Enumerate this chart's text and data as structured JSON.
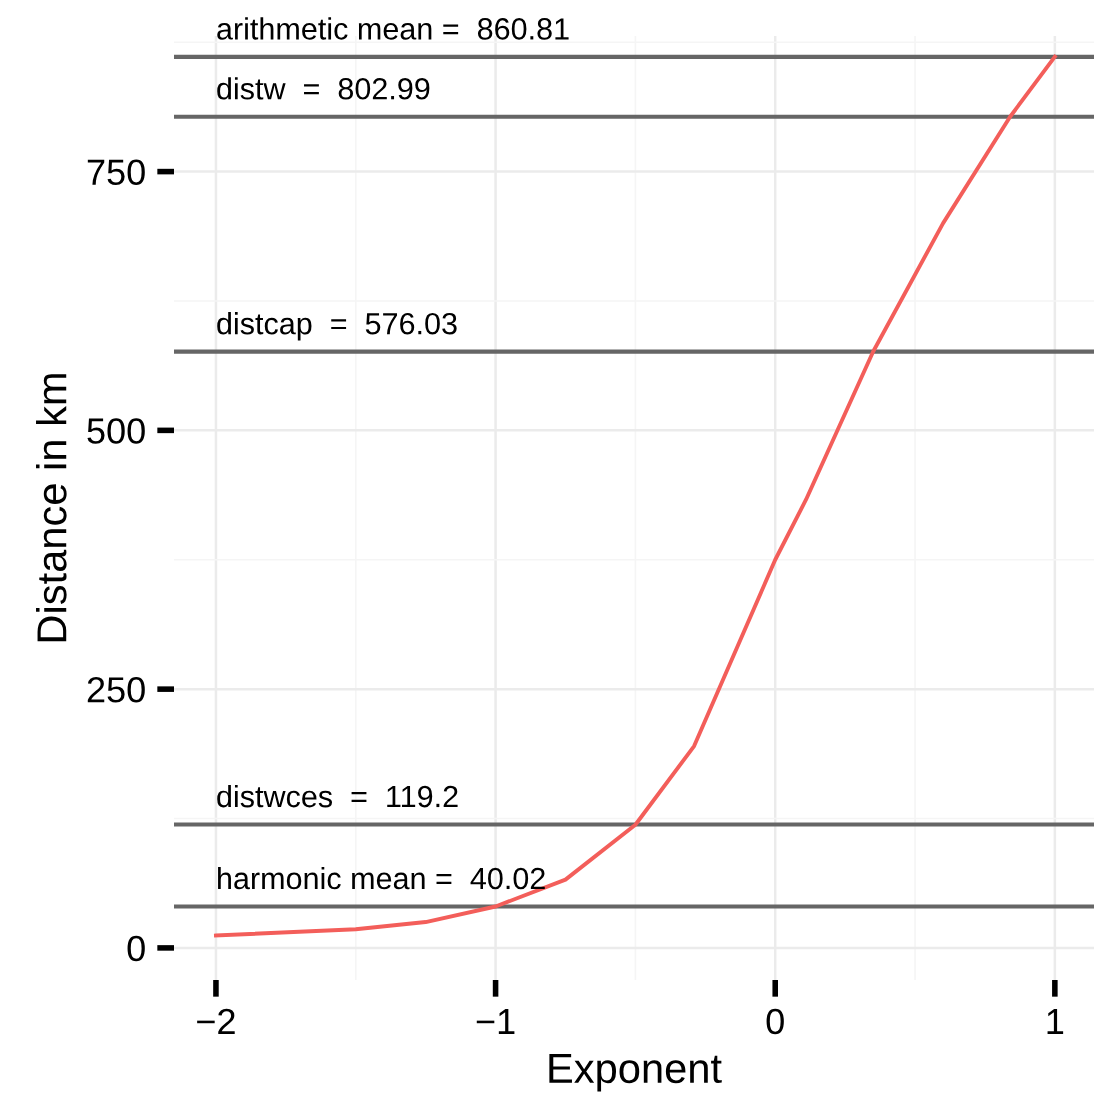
{
  "chart_data": {
    "type": "line",
    "xlabel": "Exponent",
    "ylabel": "Distance in km",
    "x": [
      -2,
      -1.5,
      -1.25,
      -1,
      -0.75,
      -0.5,
      -0.29,
      0,
      0.11,
      0.35,
      0.6,
      0.84,
      1
    ],
    "series": [
      {
        "color": "#f35e5a",
        "values": [
          12,
          18,
          25,
          40,
          66,
          119,
          195,
          375,
          433,
          576,
          700,
          803,
          861
        ]
      }
    ],
    "xlim": [
      -2.15,
      1.14
    ],
    "ylim": [
      -31,
      881
    ],
    "xticks": [
      {
        "value": -2,
        "label": "−2"
      },
      {
        "value": -1,
        "label": "−1"
      },
      0,
      1
    ],
    "yticks": [
      0,
      250,
      500,
      750
    ],
    "grid": true,
    "marker": "none",
    "line_style": "solid",
    "ref_lines": [
      {
        "axis": "y",
        "value": 860.81,
        "label": "arithmetic mean =  860.81",
        "color": "#666666"
      },
      {
        "axis": "y",
        "value": 802.99,
        "label": "distw  =  802.99",
        "color": "#666666"
      },
      {
        "axis": "y",
        "value": 576.03,
        "label": "distcap  =  576.03",
        "color": "#666666"
      },
      {
        "axis": "y",
        "value": 119.2,
        "label": "distwces  =  119.2",
        "color": "#666666"
      },
      {
        "axis": "y",
        "value": 40.02,
        "label": "harmonic mean =  40.02",
        "color": "#666666"
      }
    ]
  }
}
